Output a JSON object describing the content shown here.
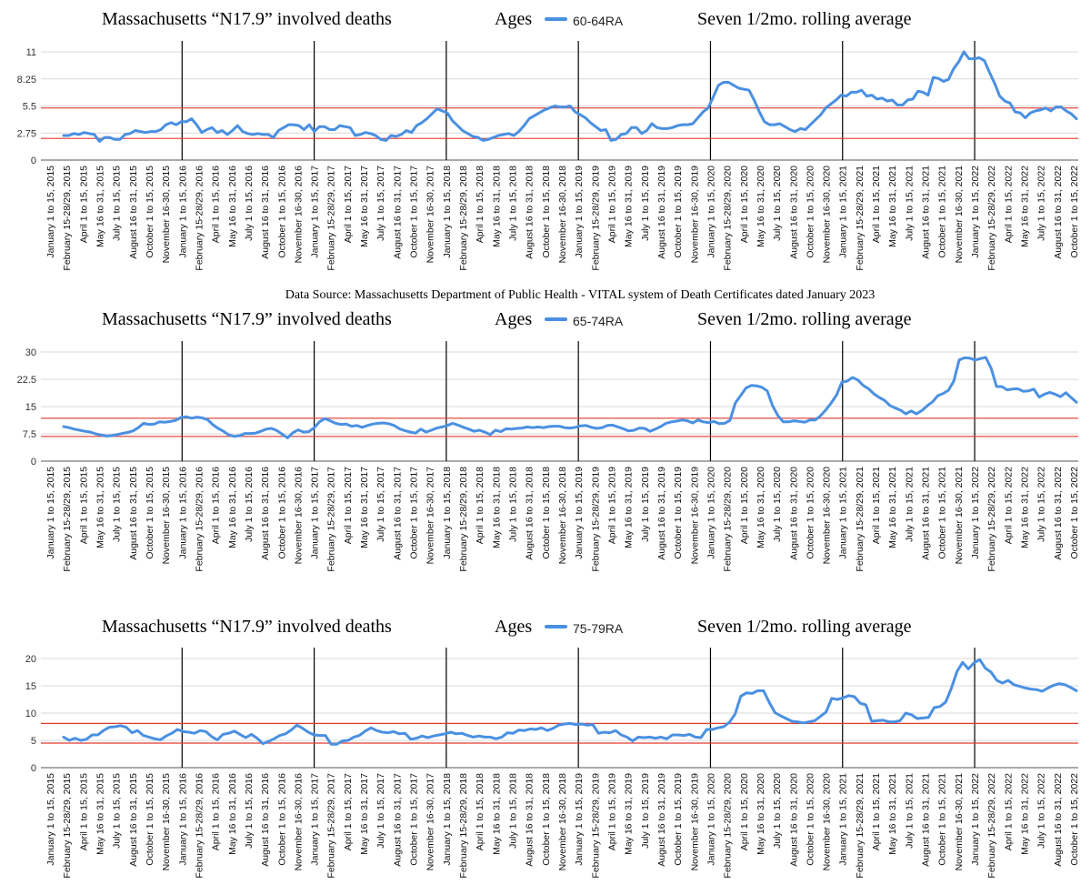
{
  "source_note": "Data Source:  Massachusetts Department of Public Health - VITAL system of Death Certificates dated January 2023",
  "x_tick_labels": [
    "January 1 to 15, 2015",
    "February 15-28/29, 2015",
    "April 1 to 15, 2015",
    "May 16 to 31, 2015",
    "July 1 to 15, 2015",
    "August 16 to 31, 2015",
    "October 1 to 15, 2015",
    "November 16-30, 2015",
    "January 1 to 15, 2016",
    "February 15-28/29, 2016",
    "April 1 to 15, 2016",
    "May 16 to 31, 2016",
    "July 1 to 15, 2016",
    "August 16 to 31, 2016",
    "October 1 to 15, 2016",
    "November 16-30, 2016",
    "January 1 to 15, 2017",
    "February 15-28/29, 2017",
    "April 1 to 15, 2017",
    "May 16 to 31, 2017",
    "July 1 to 15, 2017",
    "August 16 to 31, 2017",
    "October 1 to 15, 2017",
    "November 16-30, 2017",
    "January 1 to 15, 2018",
    "February 15-28/29, 2018",
    "April 1 to 15, 2018",
    "May 16 to 31, 2018",
    "July 1 to 15, 2018",
    "August 16 to 31, 2018",
    "October 1 to 15, 2018",
    "November 16-30, 2018",
    "January 1 to 15, 2019",
    "February 15-28/29, 2019",
    "April 1 to 15, 2019",
    "May 16 to 31, 2019",
    "July 1 to 15, 2019",
    "August 16 to 31, 2019",
    "October 1 to 15, 2019",
    "November 16-30, 2019",
    "January 1 to 15, 2020",
    "February 15-28/29, 2020",
    "April 1 to 15, 2020",
    "May 16 to 31, 2020",
    "July 1 to 15, 2020",
    "August 16 to 31, 2020",
    "October 1 to 15, 2020",
    "November 16-30, 2020",
    "January 1 to 15, 2021",
    "February 15-28/29, 2021",
    "April 1 to 15, 2021",
    "May 16 to 31, 2021",
    "July 1 to 15, 2021",
    "August 16 to 31, 2021",
    "October 1 to 15, 2021",
    "November 16-30, 2021",
    "January 1 to 15, 2022",
    "February 15-28/29, 2022",
    "April 1 to 15, 2022",
    "May 16 to 31, 2022",
    "July 1 to 15, 2022",
    "August 16 to 31, 2022",
    "October 1 to 15, 2022"
  ],
  "chart_data": [
    {
      "type": "line",
      "title": "Massachusetts “N17.9” involved deaths",
      "legend_prefix": "Ages",
      "subtitle": "Seven 1/2mo. rolling average",
      "legend_position": "top",
      "grid": true,
      "ylim": [
        0,
        11
      ],
      "y_ticks": [
        "0",
        "2.75",
        "5.5",
        "8.25",
        "11"
      ],
      "reference_lines": [
        2.2,
        5.3
      ],
      "year_divider_labels": [
        "January 1 to 15, 2016",
        "January 1 to 15, 2017",
        "January 1 to 15, 2018",
        "January 1 to 15, 2019",
        "January 1 to 15, 2020",
        "January 1 to 15, 2021",
        "January 1 to 15, 2022"
      ],
      "series": [
        {
          "name": "60-64RA",
          "color": "#4a90e2",
          "values": [
            2.5,
            2.5,
            2.7,
            2.6,
            2.8,
            2.7,
            2.6,
            1.9,
            2.3,
            2.3,
            2.1,
            2.1,
            2.6,
            2.7,
            3.0,
            2.9,
            2.8,
            2.9,
            2.9,
            3.1,
            3.6,
            3.8,
            3.6,
            3.9,
            3.9,
            4.2,
            3.6,
            2.8,
            3.1,
            3.3,
            2.8,
            3.0,
            2.6,
            3.0,
            3.5,
            2.9,
            2.7,
            2.6,
            2.7,
            2.6,
            2.6,
            2.3,
            3.0,
            3.3,
            3.6,
            3.6,
            3.5,
            3.1,
            3.6,
            2.9,
            3.4,
            3.4,
            3.1,
            3.1,
            3.5,
            3.4,
            3.3,
            2.5,
            2.6,
            2.8,
            2.7,
            2.5,
            2.1,
            2.0,
            2.5,
            2.4,
            2.6,
            3.0,
            2.8,
            3.5,
            3.8,
            4.2,
            4.7,
            5.2,
            5.0,
            4.8,
            4.0,
            3.5,
            3.0,
            2.7,
            2.4,
            2.3,
            2.0,
            2.1,
            2.3,
            2.5,
            2.6,
            2.7,
            2.5,
            2.9,
            3.5,
            4.2,
            4.5,
            4.8,
            5.1,
            5.3,
            5.5,
            5.4,
            5.4,
            5.5,
            4.9,
            4.6,
            4.3,
            3.8,
            3.4,
            3.0,
            3.1,
            2.0,
            2.1,
            2.6,
            2.7,
            3.3,
            3.3,
            2.7,
            3.0,
            3.7,
            3.3,
            3.2,
            3.2,
            3.3,
            3.5,
            3.6,
            3.6,
            3.7,
            4.3,
            4.9,
            5.3,
            6.4,
            7.6,
            7.9,
            7.9,
            7.6,
            7.3,
            7.2,
            7.1,
            6.1,
            4.9,
            3.9,
            3.6,
            3.6,
            3.7,
            3.4,
            3.1,
            2.9,
            3.2,
            3.1,
            3.6,
            4.1,
            4.6,
            5.3,
            5.7,
            6.1,
            6.6,
            6.5,
            6.9,
            6.9,
            7.1,
            6.5,
            6.6,
            6.2,
            6.3,
            6.0,
            6.1,
            5.6,
            5.6,
            6.1,
            6.2,
            7.0,
            6.9,
            6.6,
            8.4,
            8.3,
            8.0,
            8.2,
            9.3,
            10.0,
            11.0,
            10.3,
            10.3,
            10.4,
            10.1,
            8.9,
            7.8,
            6.5,
            6.0,
            5.8,
            4.9,
            4.8,
            4.3,
            4.8,
            5.0,
            5.1,
            5.3,
            5.0,
            5.4,
            5.4,
            5.0,
            4.7,
            4.2
          ]
        }
      ]
    },
    {
      "type": "line",
      "title": "Massachusetts “N17.9” involved deaths",
      "legend_prefix": "Ages",
      "subtitle": "Seven 1/2mo. rolling average",
      "legend_position": "top",
      "grid": true,
      "ylim": [
        0,
        30
      ],
      "y_ticks": [
        "0",
        "7.5",
        "15",
        "22.5",
        "30"
      ],
      "reference_lines": [
        6.8,
        11.8
      ],
      "year_divider_labels": [
        "January 1 to 15, 2016",
        "January 1 to 15, 2017",
        "January 1 to 15, 2018",
        "January 1 to 15, 2019",
        "January 1 to 15, 2020",
        "January 1 to 15, 2021",
        "January 1 to 15, 2022"
      ],
      "series": [
        {
          "name": "65-74RA",
          "color": "#4a90e2",
          "values": [
            9.5,
            9.2,
            8.8,
            8.5,
            8.2,
            8.0,
            7.5,
            7.2,
            6.9,
            7.0,
            7.3,
            7.6,
            7.9,
            8.3,
            9.2,
            10.4,
            10.1,
            10.2,
            10.8,
            10.7,
            10.9,
            11.2,
            12.0,
            12.2,
            11.8,
            12.1,
            11.9,
            11.4,
            10.0,
            9.0,
            8.2,
            7.2,
            6.8,
            7.0,
            7.6,
            7.6,
            7.7,
            8.2,
            8.8,
            9.0,
            8.4,
            7.4,
            6.4,
            7.8,
            8.6,
            8.0,
            8.1,
            9.2,
            10.8,
            11.7,
            11.1,
            10.4,
            10.1,
            10.2,
            9.6,
            9.8,
            9.3,
            9.8,
            10.2,
            10.4,
            10.5,
            10.3,
            9.8,
            8.9,
            8.4,
            8.0,
            7.7,
            8.8,
            8.0,
            8.5,
            9.1,
            9.4,
            9.8,
            10.4,
            9.9,
            9.3,
            8.8,
            8.2,
            8.5,
            8.0,
            7.3,
            8.5,
            8.1,
            8.9,
            8.8,
            9.0,
            9.1,
            9.4,
            9.2,
            9.4,
            9.2,
            9.5,
            9.6,
            9.6,
            9.2,
            9.1,
            9.3,
            9.7,
            9.8,
            9.3,
            9.0,
            9.2,
            9.8,
            9.9,
            9.4,
            8.9,
            8.3,
            8.5,
            9.1,
            9.0,
            8.2,
            8.8,
            9.5,
            10.4,
            10.8,
            11.0,
            11.3,
            11.1,
            10.5,
            11.3,
            10.8,
            10.6,
            10.9,
            10.3,
            10.4,
            11.2,
            16.0,
            18.0,
            20.1,
            20.8,
            20.7,
            20.3,
            19.3,
            15.2,
            12.5,
            10.8,
            10.8,
            11.1,
            10.9,
            10.7,
            11.3,
            11.3,
            12.5,
            14.1,
            16.0,
            18.2,
            21.7,
            22.0,
            23.0,
            22.3,
            20.8,
            19.9,
            18.5,
            17.5,
            16.7,
            15.3,
            14.6,
            14.0,
            13.0,
            13.8,
            13.0,
            13.9,
            15.2,
            16.3,
            18.0,
            18.6,
            19.5,
            22.0,
            27.8,
            28.4,
            28.3,
            27.8,
            28.2,
            28.5,
            25.5,
            20.5,
            20.5,
            19.6,
            19.8,
            19.9,
            19.2,
            19.3,
            19.8,
            17.6,
            18.4,
            18.9,
            18.4,
            17.7,
            18.8,
            17.5,
            16.2
          ]
        }
      ]
    },
    {
      "type": "line",
      "title": "Massachusetts “N17.9” involved deaths",
      "legend_prefix": "Ages",
      "subtitle": "Seven 1/2mo. rolling average",
      "legend_position": "top",
      "grid": true,
      "ylim": [
        0,
        20
      ],
      "y_ticks": [
        "0",
        "5",
        "10",
        "15",
        "20"
      ],
      "reference_lines": [
        4.5,
        8.1
      ],
      "year_divider_labels": [
        "January 1 to 15, 2016",
        "January 1 to 15, 2017",
        "January 1 to 15, 2018",
        "January 1 to 15, 2019",
        "January 1 to 15, 2020",
        "January 1 to 15, 2021",
        "January 1 to 15, 2022"
      ],
      "series": [
        {
          "name": "75-79RA",
          "color": "#4a90e2",
          "values": [
            5.6,
            5.0,
            5.4,
            5.0,
            5.2,
            6.0,
            6.0,
            6.8,
            7.4,
            7.5,
            7.7,
            7.4,
            6.4,
            6.8,
            5.9,
            5.6,
            5.3,
            5.1,
            5.8,
            6.3,
            7.0,
            6.6,
            6.5,
            6.3,
            6.8,
            6.6,
            5.7,
            5.1,
            6.1,
            6.3,
            6.7,
            6.1,
            5.5,
            6.1,
            5.4,
            4.4,
            4.8,
            5.3,
            5.9,
            6.2,
            6.9,
            7.8,
            7.2,
            6.5,
            6.0,
            5.9,
            5.9,
            4.3,
            4.3,
            4.9,
            5.0,
            5.6,
            5.9,
            6.7,
            7.3,
            6.8,
            6.5,
            6.4,
            6.6,
            6.2,
            6.3,
            5.2,
            5.4,
            5.8,
            5.5,
            5.8,
            6.0,
            6.2,
            6.5,
            6.2,
            6.3,
            5.9,
            5.6,
            5.8,
            5.6,
            5.6,
            5.3,
            5.6,
            6.4,
            6.3,
            6.9,
            6.8,
            7.1,
            7.0,
            7.3,
            6.8,
            7.2,
            7.8,
            8.0,
            8.1,
            7.9,
            8.0,
            7.8,
            7.9,
            6.3,
            6.5,
            6.4,
            6.8,
            6.0,
            5.6,
            4.9,
            5.6,
            5.5,
            5.6,
            5.4,
            5.6,
            5.3,
            6.0,
            6.0,
            5.9,
            6.1,
            5.6,
            5.5,
            7.0,
            7.0,
            7.3,
            7.5,
            8.3,
            9.8,
            13.1,
            13.7,
            13.6,
            14.1,
            14.1,
            12.0,
            10.1,
            9.5,
            9.0,
            8.5,
            8.4,
            8.2,
            8.4,
            8.6,
            9.4,
            10.2,
            12.7,
            12.5,
            12.8,
            13.2,
            13.0,
            11.8,
            11.5,
            8.5,
            8.6,
            8.7,
            8.4,
            8.4,
            8.6,
            10.0,
            9.7,
            9.0,
            9.1,
            9.2,
            11.0,
            11.2,
            12.0,
            14.5,
            17.6,
            19.3,
            18.1,
            19.2,
            19.8,
            18.2,
            17.5,
            16.0,
            15.5,
            16.0,
            15.2,
            14.9,
            14.6,
            14.4,
            14.3,
            14.0,
            14.6,
            15.1,
            15.4,
            15.2,
            14.7,
            14.1
          ]
        }
      ]
    }
  ]
}
